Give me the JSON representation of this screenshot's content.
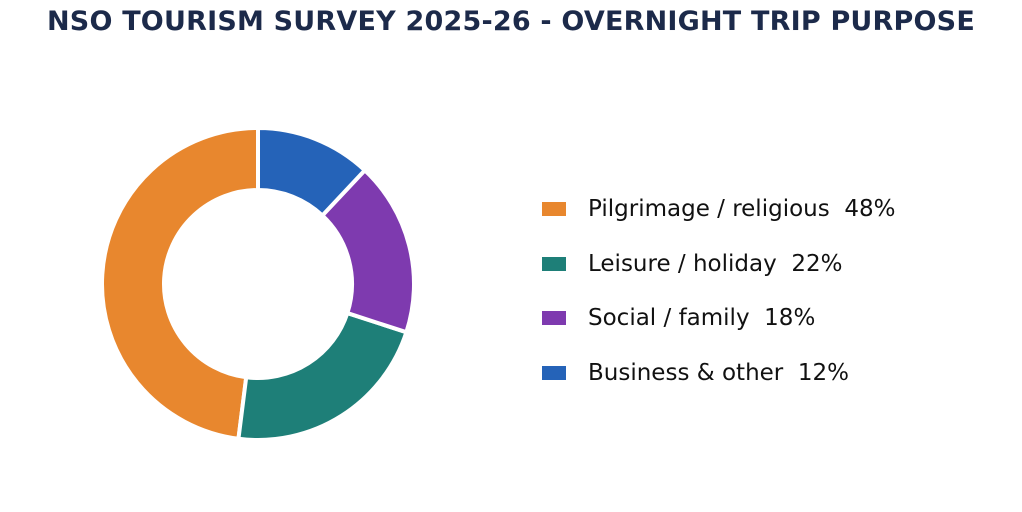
{
  "chart_data": {
    "type": "pie",
    "variant": "donut",
    "title": "NSO TOURISM SURVEY 2025-26 - OVERNIGHT TRIP PURPOSE",
    "categories": [
      "Pilgrimage / religious",
      "Leisure / holiday",
      "Social / family",
      "Business & other"
    ],
    "values": [
      48,
      22,
      18,
      12
    ],
    "unit": "%",
    "colors": [
      "#e8872e",
      "#1e7f78",
      "#7e3aaf",
      "#2563b8"
    ],
    "legend_labels": [
      "Pilgrimage / religious  48%",
      "Leisure / holiday  22%",
      "Social / family  18%",
      "Business & other  12%"
    ],
    "legend_position": "right"
  }
}
